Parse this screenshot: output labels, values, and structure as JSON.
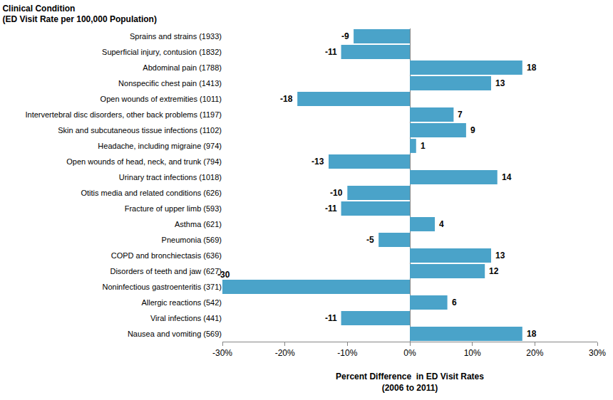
{
  "chart_data": {
    "type": "bar",
    "orientation": "horizontal",
    "title": "Clinical Condition\n(ED Visit Rate per 100,000 Population)",
    "x_label": "Percent Difference  in ED Visit Rates\n(2006 to 2011)",
    "categories": [
      "Sprains and strains (1933)",
      "Superficial injury, contusion (1832)",
      "Abdominal pain (1788)",
      "Nonspecific chest pain (1413)",
      "Open wounds of extremities (1011)",
      "Intervertebral disc disorders, other back problems (1197)",
      "Skin and subcutaneous tissue infections (1102)",
      "Headache, including migraine (974)",
      "Open wounds of head, neck, and trunk (794)",
      "Urinary tract infections (1018)",
      "Otitis media and related conditions (626)",
      "Fracture of upper limb (593)",
      "Asthma (621)",
      "Pneumonia (569)",
      "COPD and bronchiectasis (636)",
      "Disorders of teeth and jaw (627)",
      "Noninfectious gastroenteritis (371)",
      "Allergic reactions (542)",
      "Viral infections (441)",
      "Nausea and vomiting (569)"
    ],
    "values": [
      -9,
      -11,
      18,
      13,
      -18,
      7,
      9,
      1,
      -13,
      14,
      -10,
      -11,
      4,
      -5,
      13,
      12,
      -30,
      6,
      -11,
      18
    ],
    "color": "#4aa3c9",
    "xlim": [
      -30,
      30
    ],
    "xticks": [
      {
        "value": -30,
        "label": "-30%"
      },
      {
        "value": -20,
        "label": "-20%"
      },
      {
        "value": -10,
        "label": "-10%"
      },
      {
        "value": 0,
        "label": "0%"
      },
      {
        "value": 10,
        "label": "10%"
      },
      {
        "value": 20,
        "label": "20%"
      },
      {
        "value": 30,
        "label": "30%"
      }
    ],
    "grid": false,
    "data_labels": true
  }
}
